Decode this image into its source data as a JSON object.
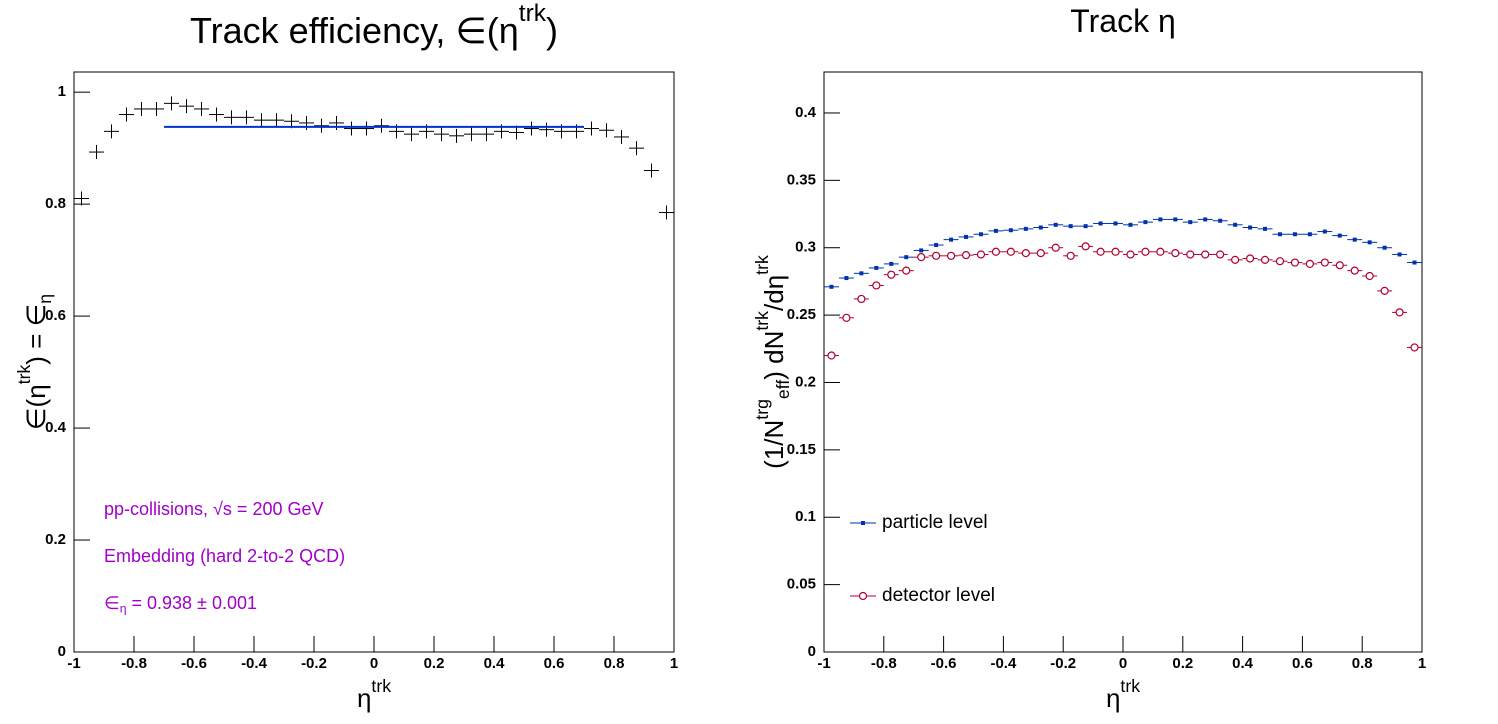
{
  "chart_data": [
    {
      "type": "scatter",
      "title": [
        {
          "text": "Track efficiency, ∈(η"
        },
        {
          "sup": "trk"
        },
        {
          "text": ")"
        }
      ],
      "xlabel": [
        {
          "text": "η"
        },
        {
          "sup": "trk"
        }
      ],
      "ylabel": [
        {
          "text": "∈(η"
        },
        {
          "sup": "trk"
        },
        {
          "text": ") = ∈"
        },
        {
          "sub": "η"
        }
      ],
      "annotations": [
        [
          {
            "text": "pp-collisions, √s = 200 GeV"
          }
        ],
        [
          {
            "text": "Embedding (hard 2-to-2 QCD)"
          }
        ],
        [
          {
            "text": "∈"
          },
          {
            "sub": "η"
          },
          {
            "text": " = 0.938 ± 0.001"
          }
        ]
      ],
      "annotation_color": "#a000c8",
      "x": [
        -0.975,
        -0.925,
        -0.875,
        -0.825,
        -0.775,
        -0.725,
        -0.675,
        -0.625,
        -0.575,
        -0.525,
        -0.475,
        -0.425,
        -0.375,
        -0.325,
        -0.275,
        -0.225,
        -0.175,
        -0.125,
        -0.075,
        -0.025,
        0.025,
        0.075,
        0.125,
        0.175,
        0.225,
        0.275,
        0.325,
        0.375,
        0.425,
        0.475,
        0.525,
        0.575,
        0.625,
        0.675,
        0.725,
        0.775,
        0.825,
        0.875,
        0.925,
        0.975
      ],
      "series": [
        {
          "color": "#000000",
          "marker": "cross",
          "values": [
            0.81,
            0.893,
            0.93,
            0.96,
            0.97,
            0.97,
            0.98,
            0.975,
            0.97,
            0.96,
            0.955,
            0.955,
            0.95,
            0.95,
            0.948,
            0.945,
            0.94,
            0.945,
            0.935,
            0.935,
            0.94,
            0.93,
            0.925,
            0.93,
            0.925,
            0.922,
            0.925,
            0.925,
            0.93,
            0.928,
            0.935,
            0.933,
            0.93,
            0.93,
            0.935,
            0.932,
            0.92,
            0.9,
            0.86,
            0.785
          ]
        }
      ],
      "fit": {
        "x": [
          -0.7,
          0.7
        ],
        "value": 0.938,
        "color": "#0033cc"
      },
      "xlim": [
        -1,
        1
      ],
      "ylim": [
        0,
        1.036
      ],
      "xticks": [
        -1,
        -0.8,
        -0.6,
        -0.4,
        -0.2,
        0,
        0.2,
        0.4,
        0.6,
        0.8,
        1
      ],
      "yticks": [
        0,
        0.2,
        0.4,
        0.6,
        0.8,
        1
      ],
      "grid": false
    },
    {
      "type": "scatter",
      "title": [
        {
          "text": "Track η"
        }
      ],
      "xlabel": [
        {
          "text": "η"
        },
        {
          "sup": "trk"
        }
      ],
      "ylabel": [
        {
          "text": "(1/N"
        },
        {
          "sup": "trg"
        },
        {
          "sub": "eff"
        },
        {
          "text": ") dN"
        },
        {
          "sup": "trk"
        },
        {
          "text": "/dη"
        },
        {
          "sup": "trk"
        }
      ],
      "x": [
        -0.975,
        -0.925,
        -0.875,
        -0.825,
        -0.775,
        -0.725,
        -0.675,
        -0.625,
        -0.575,
        -0.525,
        -0.475,
        -0.425,
        -0.375,
        -0.325,
        -0.275,
        -0.225,
        -0.175,
        -0.125,
        -0.075,
        -0.025,
        0.025,
        0.075,
        0.125,
        0.175,
        0.225,
        0.275,
        0.325,
        0.375,
        0.425,
        0.475,
        0.525,
        0.575,
        0.625,
        0.675,
        0.725,
        0.775,
        0.825,
        0.875,
        0.925,
        0.975
      ],
      "series": [
        {
          "name": "particle level",
          "color": "#0033aa",
          "marker": "square",
          "values": [
            0.271,
            0.2775,
            0.281,
            0.285,
            0.288,
            0.293,
            0.298,
            0.302,
            0.306,
            0.308,
            0.31,
            0.3125,
            0.313,
            0.314,
            0.315,
            0.317,
            0.316,
            0.316,
            0.318,
            0.318,
            0.317,
            0.319,
            0.321,
            0.321,
            0.319,
            0.321,
            0.32,
            0.317,
            0.315,
            0.314,
            0.31,
            0.31,
            0.31,
            0.312,
            0.309,
            0.306,
            0.304,
            0.3,
            0.295,
            0.289
          ]
        },
        {
          "name": "detector level",
          "color": "#b00030",
          "marker": "open-circle",
          "values": [
            0.22,
            0.248,
            0.262,
            0.272,
            0.28,
            0.283,
            0.293,
            0.294,
            0.294,
            0.2945,
            0.295,
            0.297,
            0.297,
            0.296,
            0.296,
            0.3,
            0.294,
            0.301,
            0.297,
            0.297,
            0.295,
            0.297,
            0.297,
            0.296,
            0.295,
            0.295,
            0.295,
            0.291,
            0.292,
            0.291,
            0.29,
            0.289,
            0.288,
            0.289,
            0.287,
            0.283,
            0.279,
            0.268,
            0.252,
            0.226
          ]
        }
      ],
      "legend": "lower left",
      "xlim": [
        -1,
        1
      ],
      "ylim": [
        0,
        0.4304
      ],
      "xticks": [
        -1,
        -0.8,
        -0.6,
        -0.4,
        -0.2,
        0,
        0.2,
        0.4,
        0.6,
        0.8,
        1
      ],
      "yticks": [
        0,
        0.05,
        0.1,
        0.15,
        0.2,
        0.25,
        0.3,
        0.35,
        0.4
      ],
      "grid": false
    }
  ]
}
